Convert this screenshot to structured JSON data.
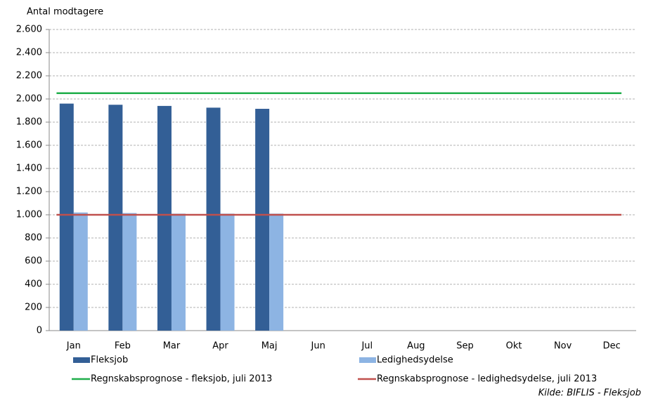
{
  "chart_data": {
    "type": "bar",
    "y_label": "Antal modtagere",
    "categories": [
      "Jan",
      "Feb",
      "Mar",
      "Apr",
      "Maj",
      "Jun",
      "Jul",
      "Aug",
      "Sep",
      "Okt",
      "Nov",
      "Dec"
    ],
    "series": [
      {
        "name": "Fleksjob",
        "type": "bar",
        "color": "#335f96",
        "values": [
          1960,
          1950,
          1940,
          1925,
          1915,
          null,
          null,
          null,
          null,
          null,
          null,
          null
        ]
      },
      {
        "name": "Ledighedsydelse",
        "type": "bar",
        "color": "#8db4e3",
        "values": [
          1020,
          1015,
          1010,
          1010,
          1010,
          null,
          null,
          null,
          null,
          null,
          null,
          null
        ]
      },
      {
        "name": "Regnskabsprognose - fleksjob, juli 2013",
        "type": "line",
        "color": "#1fae4a",
        "values": [
          2050,
          2050,
          2050,
          2050,
          2050,
          2050,
          2050,
          2050,
          2050,
          2050,
          2050,
          2050
        ]
      },
      {
        "name": "Regnskabsprognose - ledighedsydelse, juli 2013",
        "type": "line",
        "color": "#c0504d",
        "values": [
          1000,
          1000,
          1000,
          1000,
          1000,
          1000,
          1000,
          1000,
          1000,
          1000,
          1000,
          1000
        ]
      }
    ],
    "ylim": [
      0,
      2600
    ],
    "yticks": [
      0,
      200,
      400,
      600,
      800,
      {
        "value": 1000,
        "label": "1.000"
      },
      {
        "value": 1200,
        "label": "1.200"
      },
      {
        "value": 1400,
        "label": "1.400"
      },
      {
        "value": 1600,
        "label": "1.600"
      },
      {
        "value": 1800,
        "label": "1.800"
      },
      {
        "value": 2000,
        "label": "2.000"
      },
      {
        "value": 2200,
        "label": "2.200"
      },
      {
        "value": 2400,
        "label": "2.400"
      },
      {
        "value": 2600,
        "label": "2.600"
      }
    ],
    "grid": true,
    "source": "Kilde: BIFLIS - Fleksjob"
  }
}
